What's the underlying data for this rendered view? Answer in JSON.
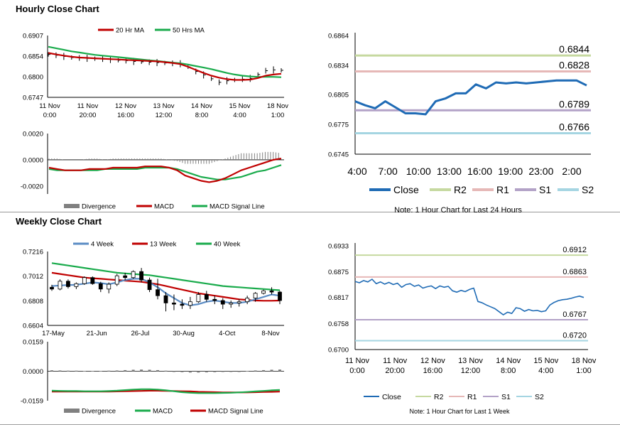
{
  "sections": {
    "hourly_title": "Hourly Close Chart",
    "weekly_title": "Weekly Close Chart"
  },
  "colors": {
    "red": "#c00000",
    "green": "#1aab4c",
    "blue": "#1f6bb5",
    "steel": "#5b8cc4",
    "r2": "#c6d9a0",
    "r1": "#e6b8b7",
    "s1": "#b3a2c7",
    "s2": "#a5d5e2",
    "grey": "#808080"
  },
  "chart_data": [
    {
      "id": "hourly-price",
      "type": "line",
      "legend": [
        "20 Hr MA",
        "50 Hrs MA"
      ],
      "y_ticks": [
        "0.6907",
        "0.6854",
        "0.6800",
        "0.6747"
      ],
      "ylim": [
        0.6747,
        0.6907
      ],
      "x_ticks": [
        [
          "11 Nov",
          "0:00"
        ],
        [
          "11 Nov",
          "20:00"
        ],
        [
          "12 Nov",
          "16:00"
        ],
        [
          "13 Nov",
          "12:00"
        ],
        [
          "14 Nov",
          "8:00"
        ],
        [
          "15 Nov",
          "4:00"
        ],
        [
          "18 Nov",
          "1:00"
        ]
      ],
      "series": [
        {
          "name": "Close",
          "values": [
            0.6858,
            0.6856,
            0.6853,
            0.685,
            0.6849,
            0.6848,
            0.6847,
            0.6846,
            0.6845,
            0.6843,
            0.6842,
            0.684,
            0.6839,
            0.6838,
            0.6837,
            0.6836,
            0.6835,
            0.6834,
            0.6826,
            0.6814,
            0.6805,
            0.6795,
            0.6786,
            0.679,
            0.6792,
            0.6794,
            0.6796,
            0.6806,
            0.6816,
            0.6818,
            0.6817
          ]
        },
        {
          "name": "20 Hr MA",
          "values": [
            0.6862,
            0.6858,
            0.6855,
            0.6852,
            0.685,
            0.6849,
            0.6848,
            0.6847,
            0.6846,
            0.6845,
            0.6844,
            0.6843,
            0.6842,
            0.6841,
            0.684,
            0.6838,
            0.6836,
            0.6833,
            0.6826,
            0.6818,
            0.681,
            0.6803,
            0.6798,
            0.6794,
            0.6792,
            0.6792,
            0.6793,
            0.6797,
            0.6803,
            0.6806,
            0.6808
          ]
        },
        {
          "name": "50 Hrs MA",
          "values": [
            0.6878,
            0.6874,
            0.687,
            0.6866,
            0.6863,
            0.686,
            0.6857,
            0.6855,
            0.6853,
            0.6851,
            0.6849,
            0.6847,
            0.6845,
            0.6843,
            0.6841,
            0.6839,
            0.6837,
            0.6835,
            0.6832,
            0.6828,
            0.6824,
            0.682,
            0.6815,
            0.681,
            0.6806,
            0.6803,
            0.6801,
            0.68,
            0.68,
            0.68,
            0.6799
          ]
        }
      ]
    },
    {
      "id": "hourly-macd",
      "type": "line",
      "legend": [
        "Divergence",
        "MACD",
        "MACD Signal Line"
      ],
      "y_ticks": [
        "0.0020",
        "0.0000",
        "-0.0020"
      ],
      "ylim": [
        -0.0026,
        0.002
      ],
      "series": [
        {
          "name": "MACD",
          "values": [
            -0.0006,
            -0.0007,
            -0.0008,
            -0.0008,
            -0.0008,
            -0.0007,
            -0.0007,
            -0.0007,
            -0.0006,
            -0.0006,
            -0.0006,
            -0.0006,
            -0.0005,
            -0.0005,
            -0.0005,
            -0.0006,
            -0.0008,
            -0.0012,
            -0.0014,
            -0.0016,
            -0.0017,
            -0.0016,
            -0.0014,
            -0.0011,
            -0.0008,
            -0.0006,
            -0.0004,
            -0.0002,
            0.0,
            0.0001
          ]
        },
        {
          "name": "MACD Signal Line",
          "values": [
            -0.0007,
            -0.0008,
            -0.0008,
            -0.0008,
            -0.0008,
            -0.0008,
            -0.0008,
            -0.0007,
            -0.0007,
            -0.0007,
            -0.0007,
            -0.0007,
            -0.0006,
            -0.0006,
            -0.0006,
            -0.0006,
            -0.0007,
            -0.0009,
            -0.0011,
            -0.0013,
            -0.0014,
            -0.0015,
            -0.0015,
            -0.0014,
            -0.0013,
            -0.0011,
            -0.0009,
            -0.0008,
            -0.0006,
            -0.0004
          ]
        },
        {
          "name": "Divergence",
          "values": [
            0.0001,
            0.0001,
            0.0,
            0.0,
            0.0,
            0.0001,
            0.0001,
            0.0,
            0.0001,
            0.0001,
            0.0001,
            0.0001,
            0.0001,
            0.0001,
            0.0001,
            0.0,
            -0.0001,
            -0.0003,
            -0.0003,
            -0.0003,
            -0.0003,
            -0.0001,
            0.0001,
            0.0003,
            0.0005,
            0.0005,
            0.0005,
            0.0006,
            0.0006,
            0.0005
          ]
        }
      ]
    },
    {
      "id": "hourly-levels",
      "type": "line",
      "y_ticks": [
        "0.6864",
        "0.6834",
        "0.6805",
        "0.6775",
        "0.6745"
      ],
      "ylim": [
        0.6745,
        0.6864
      ],
      "x_ticks": [
        "4:00",
        "7:00",
        "10:00",
        "13:00",
        "16:00",
        "19:00",
        "23:00",
        "2:00"
      ],
      "levels": [
        {
          "name": "R2",
          "value": 0.6844,
          "label": "0.6844"
        },
        {
          "name": "R1",
          "value": 0.6828,
          "label": "0.6828"
        },
        {
          "name": "S1",
          "value": 0.6789,
          "label": "0.6789"
        },
        {
          "name": "S2",
          "value": 0.6766,
          "label": "0.6766"
        }
      ],
      "series": [
        {
          "name": "Close",
          "values": [
            0.6798,
            0.6794,
            0.6791,
            0.6798,
            0.6792,
            0.6786,
            0.6786,
            0.6785,
            0.6798,
            0.6801,
            0.6806,
            0.6806,
            0.6815,
            0.6811,
            0.6817,
            0.6816,
            0.6817,
            0.6816,
            0.6817,
            0.6818,
            0.6819,
            0.6819,
            0.6819,
            0.6814
          ]
        },
        {
          "name": "R2"
        },
        {
          "name": "R1"
        },
        {
          "name": "S1"
        },
        {
          "name": "S2"
        }
      ],
      "note": "Note: 1 Hour Chart for Last 24 Hours"
    },
    {
      "id": "weekly-price",
      "type": "candlestick",
      "legend": [
        "4 Week",
        "13 Week",
        "40 Week"
      ],
      "y_ticks": [
        "0.7216",
        "0.7012",
        "0.6808",
        "0.6604"
      ],
      "ylim": [
        0.6604,
        0.7216
      ],
      "x_ticks": [
        "17-May",
        "21-Jun",
        "26-Jul",
        "30-Aug",
        "4-Oct",
        "8-Nov"
      ],
      "candles": [
        [
          0.692,
          0.694,
          0.689,
          0.6905
        ],
        [
          0.6905,
          0.6985,
          0.6895,
          0.697
        ],
        [
          0.697,
          0.6985,
          0.691,
          0.6925
        ],
        [
          0.6925,
          0.696,
          0.6905,
          0.695
        ],
        [
          0.695,
          0.701,
          0.694,
          0.7
        ],
        [
          0.7,
          0.701,
          0.694,
          0.695
        ],
        [
          0.695,
          0.6965,
          0.688,
          0.6905
        ],
        [
          0.6905,
          0.696,
          0.687,
          0.6945
        ],
        [
          0.6945,
          0.703,
          0.693,
          0.7015
        ],
        [
          0.7015,
          0.704,
          0.698,
          0.7
        ],
        [
          0.7,
          0.706,
          0.699,
          0.705
        ],
        [
          0.705,
          0.708,
          0.696,
          0.698
        ],
        [
          0.698,
          0.7,
          0.688,
          0.69
        ],
        [
          0.69,
          0.699,
          0.682,
          0.685
        ],
        [
          0.685,
          0.688,
          0.672,
          0.679
        ],
        [
          0.679,
          0.686,
          0.673,
          0.678
        ],
        [
          0.678,
          0.682,
          0.674,
          0.677
        ],
        [
          0.677,
          0.684,
          0.674,
          0.68
        ],
        [
          0.68,
          0.688,
          0.679,
          0.686
        ],
        [
          0.686,
          0.689,
          0.68,
          0.682
        ],
        [
          0.682,
          0.685,
          0.678,
          0.681
        ],
        [
          0.681,
          0.683,
          0.674,
          0.678
        ],
        [
          0.678,
          0.681,
          0.675,
          0.679
        ],
        [
          0.679,
          0.682,
          0.676,
          0.68
        ],
        [
          0.68,
          0.685,
          0.678,
          0.683
        ],
        [
          0.683,
          0.688,
          0.68,
          0.687
        ],
        [
          0.687,
          0.69,
          0.686,
          0.689
        ],
        [
          0.689,
          0.692,
          0.686,
          0.688
        ],
        [
          0.688,
          0.689,
          0.678,
          0.681
        ]
      ],
      "series": [
        {
          "name": "4 Week",
          "values": [
            0.693,
            0.6935,
            0.6938,
            0.694,
            0.695,
            0.696,
            0.6955,
            0.6945,
            0.696,
            0.698,
            0.699,
            0.699,
            0.696,
            0.692,
            0.687,
            0.683,
            0.679,
            0.677,
            0.678,
            0.68,
            0.681,
            0.68,
            0.679,
            0.679,
            0.68,
            0.682,
            0.684,
            0.686,
            0.685
          ]
        },
        {
          "name": "13 Week",
          "values": [
            0.704,
            0.703,
            0.702,
            0.701,
            0.7,
            0.6995,
            0.699,
            0.6985,
            0.698,
            0.6975,
            0.697,
            0.6965,
            0.6955,
            0.6945,
            0.693,
            0.6915,
            0.69,
            0.6885,
            0.687,
            0.686,
            0.685,
            0.684,
            0.683,
            0.682,
            0.6815,
            0.681,
            0.6808,
            0.6808,
            0.681
          ]
        },
        {
          "name": "40 Week",
          "values": [
            0.712,
            0.711,
            0.71,
            0.709,
            0.708,
            0.707,
            0.706,
            0.705,
            0.704,
            0.7035,
            0.703,
            0.7025,
            0.702,
            0.701,
            0.7,
            0.699,
            0.698,
            0.697,
            0.696,
            0.695,
            0.694,
            0.693,
            0.6925,
            0.692,
            0.6915,
            0.691,
            0.6905,
            0.69,
            0.6895
          ]
        }
      ]
    },
    {
      "id": "weekly-macd",
      "type": "line",
      "legend": [
        "Divergence",
        "MACD",
        "MACD Signal Line"
      ],
      "y_ticks": [
        "0.0159",
        "0.0000",
        "-0.0159"
      ],
      "ylim": [
        -0.0159,
        0.0159
      ],
      "series": [
        {
          "name": "MACD",
          "values": [
            -0.0105,
            -0.0106,
            -0.0107,
            -0.0107,
            -0.0108,
            -0.0108,
            -0.0108,
            -0.0107,
            -0.0105,
            -0.0102,
            -0.0099,
            -0.0097,
            -0.0097,
            -0.0099,
            -0.0103,
            -0.0108,
            -0.0113,
            -0.0116,
            -0.0118,
            -0.0118,
            -0.0118,
            -0.0117,
            -0.0116,
            -0.0114,
            -0.0112,
            -0.0109,
            -0.0106,
            -0.0103,
            -0.0101
          ]
        },
        {
          "name": "MACD Signal Line",
          "values": [
            -0.011,
            -0.011,
            -0.011,
            -0.011,
            -0.011,
            -0.011,
            -0.011,
            -0.011,
            -0.0109,
            -0.0108,
            -0.0107,
            -0.0106,
            -0.0105,
            -0.0105,
            -0.0106,
            -0.0107,
            -0.0108,
            -0.0109,
            -0.0111,
            -0.0112,
            -0.0113,
            -0.0114,
            -0.0114,
            -0.0114,
            -0.0114,
            -0.0113,
            -0.0112,
            -0.0111,
            -0.011
          ]
        },
        {
          "name": "Divergence",
          "values": [
            0.0005,
            0.0004,
            0.0003,
            0.0003,
            0.0002,
            0.0002,
            0.0002,
            0.0003,
            0.0004,
            0.0006,
            0.0008,
            0.0009,
            0.0008,
            0.0006,
            0.0003,
            -0.0001,
            -0.0005,
            -0.0007,
            -0.0007,
            -0.0006,
            -0.0005,
            -0.0003,
            -0.0002,
            0.0,
            0.0002,
            0.0004,
            0.0006,
            0.0008,
            0.0009
          ]
        }
      ]
    },
    {
      "id": "weekly-levels",
      "type": "line",
      "y_ticks": [
        "0.6933",
        "0.6875",
        "0.6817",
        "0.6758",
        "0.6700"
      ],
      "ylim": [
        0.67,
        0.6933
      ],
      "x_ticks": [
        [
          "11 Nov",
          "0:00"
        ],
        [
          "11 Nov",
          "20:00"
        ],
        [
          "12 Nov",
          "16:00"
        ],
        [
          "13 Nov",
          "12:00"
        ],
        [
          "14 Nov",
          "8:00"
        ],
        [
          "15 Nov",
          "4:00"
        ],
        [
          "18 Nov",
          "1:00"
        ]
      ],
      "levels": [
        {
          "name": "R2",
          "value": 0.6912,
          "label": "0.6912"
        },
        {
          "name": "R1",
          "value": 0.6863,
          "label": "0.6863"
        },
        {
          "name": "S1",
          "value": 0.6767,
          "label": "0.6767"
        },
        {
          "name": "S2",
          "value": 0.672,
          "label": "0.6720"
        }
      ],
      "series": [
        {
          "name": "Close",
          "values": [
            0.6853,
            0.685,
            0.6855,
            0.6852,
            0.6858,
            0.6848,
            0.6852,
            0.6847,
            0.6851,
            0.6846,
            0.6849,
            0.684,
            0.6846,
            0.6848,
            0.6842,
            0.6845,
            0.6838,
            0.6841,
            0.6843,
            0.6837,
            0.6843,
            0.684,
            0.6842,
            0.6832,
            0.6829,
            0.6833,
            0.683,
            0.6835,
            0.6838,
            0.6808,
            0.6805,
            0.68,
            0.6796,
            0.6792,
            0.6785,
            0.6778,
            0.6784,
            0.6781,
            0.6794,
            0.6792,
            0.6786,
            0.679,
            0.6787,
            0.6788,
            0.6785,
            0.6787,
            0.68,
            0.6806,
            0.681,
            0.6812,
            0.6813,
            0.6815,
            0.6818,
            0.682,
            0.6817
          ]
        },
        {
          "name": "R2"
        },
        {
          "name": "R1"
        },
        {
          "name": "S1"
        },
        {
          "name": "S2"
        }
      ],
      "note": "Note: 1 Hour Chart for Last 1 Week"
    }
  ]
}
